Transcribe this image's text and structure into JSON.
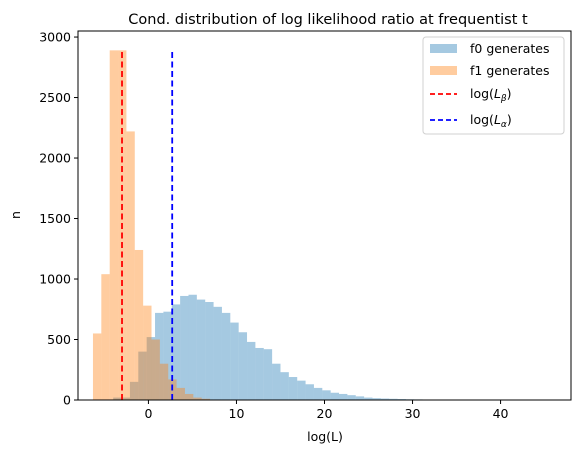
{
  "chart_data": {
    "type": "histogram",
    "title": "Cond. distribution of log likelihood ratio at frequentist  t",
    "xlabel": "log(L)",
    "ylabel": "n",
    "xlim": [
      -8,
      48
    ],
    "ylim": [
      0,
      3050
    ],
    "x_ticks": [
      0,
      10,
      20,
      30,
      40
    ],
    "x_tick_labels": [
      "0",
      "10",
      "20",
      "30",
      "40"
    ],
    "y_ticks": [
      0,
      500,
      1000,
      1500,
      2000,
      2500,
      3000
    ],
    "y_tick_labels": [
      "0",
      "500",
      "1000",
      "1500",
      "2000",
      "2500",
      "3000"
    ],
    "grid": false,
    "legend_position": "top-right",
    "series": [
      {
        "name": "f0 generates",
        "kind": "hist",
        "color": "#1f77b4",
        "alpha": 0.4,
        "bin_width": 0.95,
        "x_start": -4.0,
        "counts": [
          20,
          20,
          150,
          400,
          520,
          720,
          730,
          790,
          860,
          870,
          830,
          810,
          770,
          720,
          640,
          560,
          480,
          430,
          420,
          300,
          230,
          190,
          160,
          130,
          100,
          80,
          60,
          50,
          40,
          30,
          20,
          15,
          12,
          10,
          8,
          6,
          5,
          4,
          3,
          3,
          2,
          2,
          1,
          1,
          1,
          1,
          1,
          1,
          1,
          1,
          1
        ]
      },
      {
        "name": "f1 generates",
        "kind": "hist",
        "color": "#ff7f0e",
        "alpha": 0.4,
        "bin_width": 0.95,
        "x_start": -6.3,
        "counts": [
          550,
          1040,
          2890,
          2890,
          2220,
          1240,
          780,
          500,
          300,
          170,
          100,
          50,
          20,
          10
        ]
      },
      {
        "name": "log(L_β)",
        "kind": "vline",
        "x": -3.0,
        "ymax": 2880,
        "color": "#ff0000",
        "style": "dashed"
      },
      {
        "name": "log(L_α)",
        "kind": "vline",
        "x": 2.7,
        "ymax": 2880,
        "color": "#0000ff",
        "style": "dashed"
      }
    ]
  },
  "legend": {
    "entries": [
      {
        "label": "f0 generates",
        "type": "patch",
        "color": "#1f77b4"
      },
      {
        "label": "f1 generates",
        "type": "patch",
        "color": "#ff7f0e"
      },
      {
        "label_prefix": "log(",
        "label_main": "L",
        "label_sub": "β",
        "label_suffix": ")",
        "type": "line",
        "color": "#ff0000"
      },
      {
        "label_prefix": "log(",
        "label_main": "L",
        "label_sub": "α",
        "label_suffix": ")",
        "type": "line",
        "color": "#0000ff"
      }
    ]
  }
}
